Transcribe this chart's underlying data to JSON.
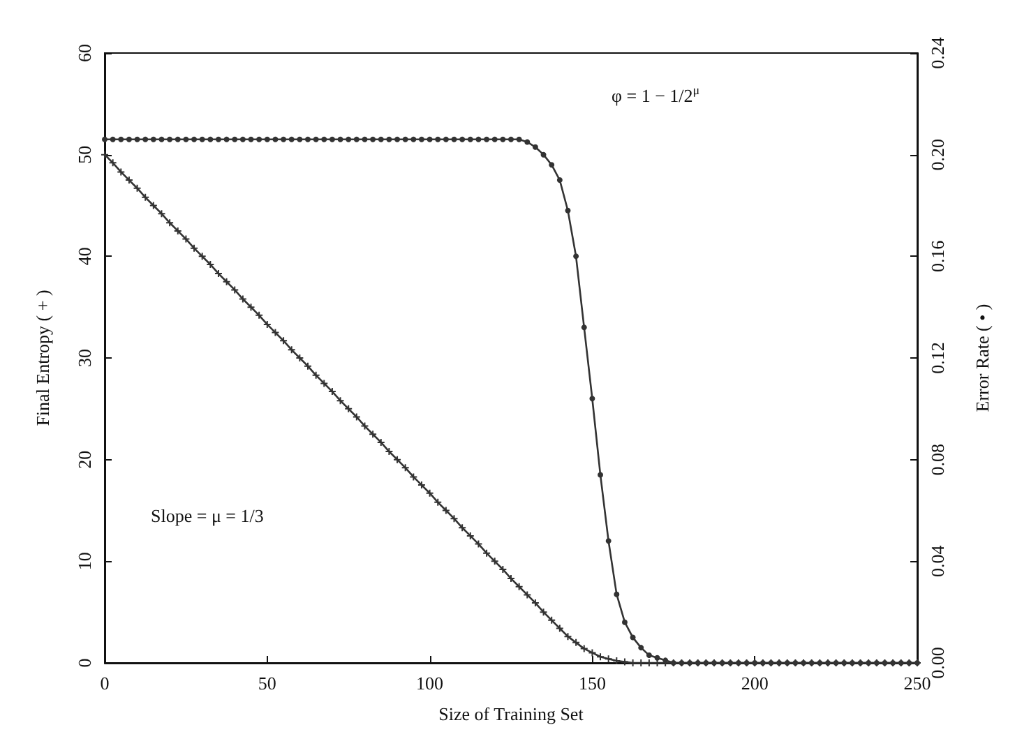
{
  "chart_data": {
    "type": "line",
    "xlabel": "Size of Training Set",
    "ylabel": "Final Entropy ( + )",
    "y2label": "Error Rate ( • )",
    "x": [
      0,
      2.5,
      5,
      7.5,
      10,
      12.5,
      15,
      17.5,
      20,
      22.5,
      25,
      27.5,
      30,
      32.5,
      35,
      37.5,
      40,
      42.5,
      45,
      47.5,
      50,
      52.5,
      55,
      57.5,
      60,
      62.5,
      65,
      67.5,
      70,
      72.5,
      75,
      77.5,
      80,
      82.5,
      85,
      87.5,
      90,
      92.5,
      95,
      97.5,
      100,
      102.5,
      105,
      107.5,
      110,
      112.5,
      115,
      117.5,
      120,
      122.5,
      125,
      127.5,
      130,
      132.5,
      135,
      137.5,
      140,
      142.5,
      145,
      147.5,
      150,
      152.5,
      155,
      157.5,
      160,
      162.5,
      165,
      167.5,
      170,
      172.5,
      175,
      177.5,
      180,
      182.5,
      185,
      187.5,
      190,
      192.5,
      195,
      197.5,
      200,
      202.5,
      205,
      207.5,
      210,
      212.5,
      215,
      217.5,
      220,
      222.5,
      225,
      227.5,
      230,
      232.5,
      235,
      237.5,
      240,
      242.5,
      245,
      247.5,
      250
    ],
    "series": [
      {
        "color": "#333333",
        "marker": "cross",
        "values": [
          50,
          49.2,
          48.3,
          47.5,
          46.7,
          45.8,
          45,
          44.2,
          43.3,
          42.5,
          41.7,
          40.8,
          40,
          39.2,
          38.3,
          37.5,
          36.7,
          35.8,
          35,
          34.2,
          33.3,
          32.5,
          31.7,
          30.8,
          30,
          29.2,
          28.3,
          27.5,
          26.7,
          25.8,
          25,
          24.2,
          23.3,
          22.5,
          21.7,
          20.8,
          20,
          19.2,
          18.3,
          17.5,
          16.7,
          15.8,
          15,
          14.2,
          13.3,
          12.5,
          11.7,
          10.8,
          10,
          9.2,
          8.3,
          7.5,
          6.7,
          5.9,
          5.0,
          4.2,
          3.4,
          2.6,
          2.0,
          1.4,
          1.0,
          0.6,
          0.4,
          0.2,
          0.1,
          0,
          0,
          0,
          0,
          0,
          0,
          0,
          0,
          0,
          0,
          0,
          0,
          0,
          0,
          0,
          0,
          0,
          0,
          0,
          0,
          0,
          0,
          0,
          0,
          0,
          0,
          0,
          0,
          0,
          0,
          0,
          0,
          0,
          0,
          0,
          0
        ]
      },
      {
        "color": "#333333",
        "marker": "circle",
        "axis": "y2",
        "values": [
          0.206,
          0.206,
          0.206,
          0.206,
          0.206,
          0.206,
          0.206,
          0.206,
          0.206,
          0.206,
          0.206,
          0.206,
          0.206,
          0.206,
          0.206,
          0.206,
          0.206,
          0.206,
          0.206,
          0.206,
          0.206,
          0.206,
          0.206,
          0.206,
          0.206,
          0.206,
          0.206,
          0.206,
          0.206,
          0.206,
          0.206,
          0.206,
          0.206,
          0.206,
          0.206,
          0.206,
          0.206,
          0.206,
          0.206,
          0.206,
          0.206,
          0.206,
          0.206,
          0.206,
          0.206,
          0.206,
          0.206,
          0.206,
          0.206,
          0.206,
          0.206,
          0.206,
          0.205,
          0.203,
          0.2,
          0.196,
          0.19,
          0.178,
          0.16,
          0.132,
          0.104,
          0.074,
          0.048,
          0.027,
          0.016,
          0.01,
          0.006,
          0.003,
          0.002,
          0.001,
          0,
          0,
          0,
          0,
          0,
          0,
          0,
          0,
          0,
          0,
          0,
          0,
          0,
          0,
          0,
          0,
          0,
          0,
          0,
          0,
          0,
          0,
          0,
          0,
          0,
          0,
          0,
          0,
          0,
          0,
          0
        ]
      }
    ],
    "xlim": [
      0,
      250
    ],
    "xticks": [
      0,
      50,
      100,
      150,
      200,
      250
    ],
    "ylim": [
      0,
      60
    ],
    "yticks": [
      0,
      10,
      20,
      30,
      40,
      50,
      60
    ],
    "y2lim": [
      0,
      0.24
    ],
    "y2ticks": [
      {
        "value": 0,
        "label": "0.00"
      },
      {
        "value": 0.04,
        "label": "0.04"
      },
      {
        "value": 0.08,
        "label": "0.08"
      },
      {
        "value": 0.12,
        "label": "0.12"
      },
      {
        "value": 0.16,
        "label": "0.16"
      },
      {
        "value": 0.2,
        "label": "0.20"
      },
      {
        "value": 0.24,
        "label": "0.24"
      }
    ],
    "annotations": [
      "φ = 1 − 1/2$^{μ}$",
      "Slope = μ = 1/3"
    ],
    "grid": false,
    "line_style": "solid"
  }
}
